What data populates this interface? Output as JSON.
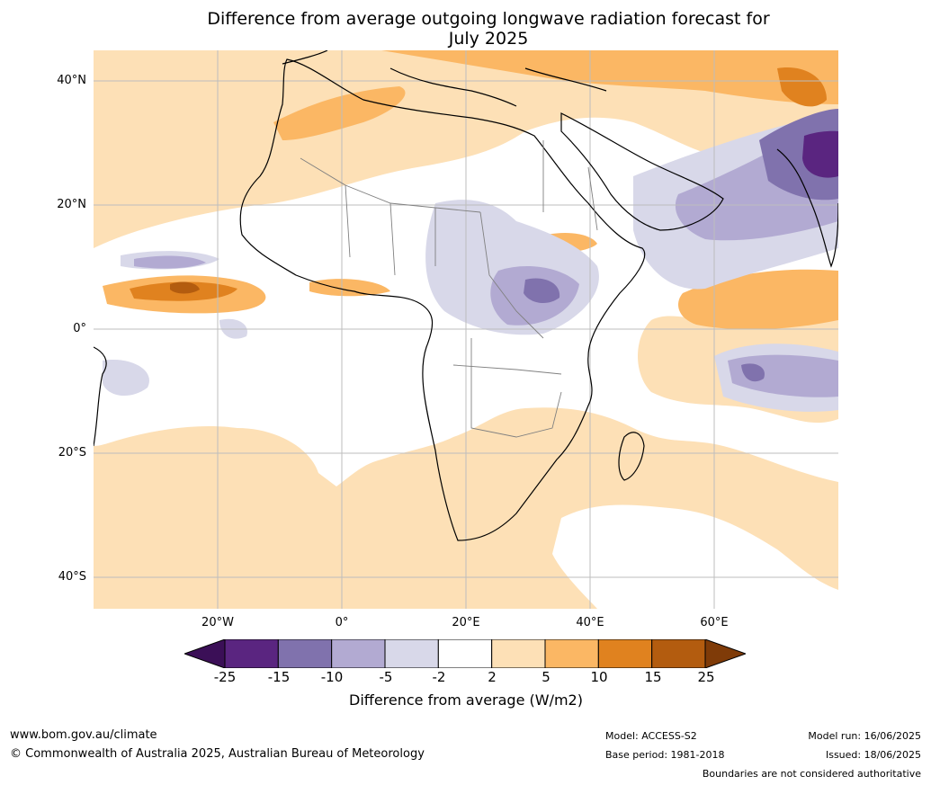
{
  "title_line1": "Difference from average outgoing longwave radiation forecast for",
  "title_line2": "July 2025",
  "lat_labels": [
    "40°N",
    "20°N",
    "0°",
    "20°S",
    "40°S"
  ],
  "lon_labels": [
    "20°W",
    "0°",
    "20°E",
    "40°E",
    "60°E"
  ],
  "colorbar": {
    "label": "Difference from average (W/m2)",
    "ticks": [
      "-25",
      "-15",
      "-10",
      "-5",
      "-2",
      "2",
      "5",
      "10",
      "15",
      "25"
    ],
    "colors": [
      "#3b0f57",
      "#5a2580",
      "#8072ad",
      "#b2aad2",
      "#d8d8e9",
      "#ffffff",
      "#fde0b6",
      "#fbb764",
      "#e0821f",
      "#b35c0f",
      "#7f3b08"
    ]
  },
  "footer": {
    "website": "www.bom.gov.au/climate",
    "copyright": "© Commonwealth of Australia 2025, Australian Bureau of Meteorology",
    "model": "Model: ACCESS-S2",
    "base_period": "Base period: 1981-2018",
    "model_run": "Model run: 16/06/2025",
    "issued": "Issued: 18/06/2025",
    "disclaimer": "Boundaries are not considered authoritative"
  }
}
